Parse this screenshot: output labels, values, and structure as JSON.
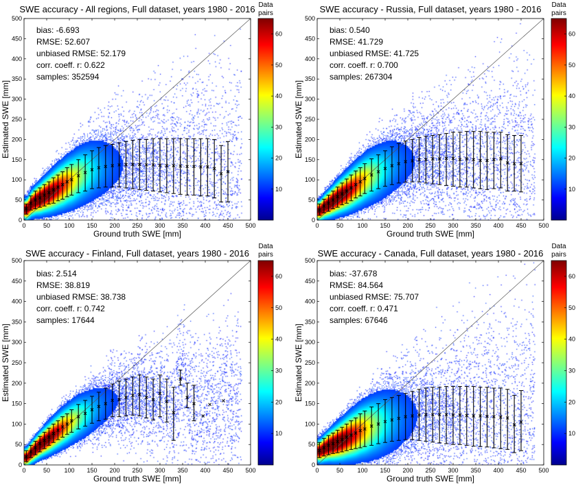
{
  "colorbar": {
    "title_line1": "Data",
    "title_line2": "pairs",
    "ticks": [
      10,
      20,
      30,
      40,
      50,
      60
    ],
    "range": [
      0,
      65
    ]
  },
  "panels": [
    {
      "title": "SWE accuracy - All regions, Full dataset, years 1980 - 2016",
      "stats": {
        "bias": "bias: -6.693",
        "rmse": "RMSE: 52.607",
        "urmse": "unbiased RMSE: 52.179",
        "corr": "corr. coeff. r: 0.622",
        "samples": "samples: 352594"
      }
    },
    {
      "title": "SWE accuracy - Russia, Full dataset, years 1980 - 2016",
      "stats": {
        "bias": "bias: 0.540",
        "rmse": "RMSE: 41.729",
        "urmse": "unbiased RMSE: 41.725",
        "corr": "corr. coeff. r: 0.700",
        "samples": "samples: 267304"
      }
    },
    {
      "title": "SWE accuracy - Finland, Full dataset, years 1980 - 2016",
      "stats": {
        "bias": "bias: 2.514",
        "rmse": "RMSE: 38.819",
        "urmse": "unbiased RMSE: 38.738",
        "corr": "corr. coeff. r: 0.742",
        "samples": "samples: 17644"
      }
    },
    {
      "title": "SWE accuracy - Canada, Full dataset, years 1980 - 2016",
      "stats": {
        "bias": "bias: -37.678",
        "rmse": "RMSE: 84.564",
        "urmse": "unbiased RMSE: 75.707",
        "corr": "corr. coeff. r: 0.471",
        "samples": "samples: 67646"
      }
    }
  ],
  "chart_data": [
    {
      "type": "scatter",
      "title": "SWE accuracy - All regions, Full dataset, years 1980 - 2016",
      "xlabel": "Ground truth SWE [mm]",
      "ylabel": "Estimated SWE [mm]",
      "xlim": [
        0,
        500
      ],
      "ylim": [
        0,
        500
      ],
      "xticks": [
        0,
        50,
        100,
        150,
        200,
        250,
        300,
        350,
        400,
        450,
        500
      ],
      "yticks": [
        0,
        50,
        100,
        150,
        200,
        250,
        300,
        350,
        400,
        450,
        500
      ],
      "reference_line": "1:1",
      "density_spread": 0.75,
      "bins": [
        {
          "x": 5,
          "mean": 28,
          "low": 15,
          "high": 40
        },
        {
          "x": 15,
          "mean": 42,
          "low": 25,
          "high": 60
        },
        {
          "x": 25,
          "mean": 50,
          "low": 28,
          "high": 72
        },
        {
          "x": 35,
          "mean": 55,
          "low": 32,
          "high": 80
        },
        {
          "x": 45,
          "mean": 62,
          "low": 35,
          "high": 88
        },
        {
          "x": 55,
          "mean": 68,
          "low": 40,
          "high": 95
        },
        {
          "x": 65,
          "mean": 75,
          "low": 42,
          "high": 105
        },
        {
          "x": 75,
          "mean": 82,
          "low": 48,
          "high": 112
        },
        {
          "x": 85,
          "mean": 88,
          "low": 52,
          "high": 120
        },
        {
          "x": 95,
          "mean": 95,
          "low": 58,
          "high": 130
        },
        {
          "x": 105,
          "mean": 100,
          "low": 62,
          "high": 138
        },
        {
          "x": 120,
          "mean": 110,
          "low": 68,
          "high": 150
        },
        {
          "x": 135,
          "mean": 118,
          "low": 72,
          "high": 162
        },
        {
          "x": 150,
          "mean": 125,
          "low": 78,
          "high": 172
        },
        {
          "x": 165,
          "mean": 130,
          "low": 80,
          "high": 180
        },
        {
          "x": 180,
          "mean": 133,
          "low": 82,
          "high": 185
        },
        {
          "x": 195,
          "mean": 135,
          "low": 82,
          "high": 188
        },
        {
          "x": 210,
          "mean": 137,
          "low": 82,
          "high": 192
        },
        {
          "x": 225,
          "mean": 138,
          "low": 80,
          "high": 195
        },
        {
          "x": 240,
          "mean": 138,
          "low": 78,
          "high": 198
        },
        {
          "x": 255,
          "mean": 138,
          "low": 76,
          "high": 200
        },
        {
          "x": 270,
          "mean": 137,
          "low": 74,
          "high": 200
        },
        {
          "x": 285,
          "mean": 137,
          "low": 72,
          "high": 202
        },
        {
          "x": 300,
          "mean": 136,
          "low": 70,
          "high": 202
        },
        {
          "x": 315,
          "mean": 135,
          "low": 68,
          "high": 202
        },
        {
          "x": 330,
          "mean": 135,
          "low": 66,
          "high": 202
        },
        {
          "x": 345,
          "mean": 134,
          "low": 64,
          "high": 202
        },
        {
          "x": 360,
          "mean": 133,
          "low": 62,
          "high": 202
        },
        {
          "x": 375,
          "mean": 133,
          "low": 62,
          "high": 202
        },
        {
          "x": 390,
          "mean": 132,
          "low": 60,
          "high": 202
        },
        {
          "x": 405,
          "mean": 132,
          "low": 60,
          "high": 202
        },
        {
          "x": 420,
          "mean": 128,
          "low": 55,
          "high": 200
        },
        {
          "x": 435,
          "mean": 115,
          "low": 45,
          "high": 185
        },
        {
          "x": 450,
          "mean": 120,
          "low": 45,
          "high": 195
        }
      ]
    },
    {
      "type": "scatter",
      "title": "SWE accuracy - Russia, Full dataset, years 1980 - 2016",
      "xlabel": "Ground truth SWE [mm]",
      "ylabel": "Estimated SWE [mm]",
      "xlim": [
        0,
        500
      ],
      "ylim": [
        0,
        500
      ],
      "xticks": [
        0,
        50,
        100,
        150,
        200,
        250,
        300,
        350,
        400,
        450,
        500
      ],
      "yticks": [
        0,
        50,
        100,
        150,
        200,
        250,
        300,
        350,
        400,
        450,
        500
      ],
      "reference_line": "1:1",
      "density_spread": 0.7,
      "bins": [
        {
          "x": 5,
          "mean": 25,
          "low": 12,
          "high": 40
        },
        {
          "x": 15,
          "mean": 35,
          "low": 18,
          "high": 52
        },
        {
          "x": 25,
          "mean": 42,
          "low": 22,
          "high": 62
        },
        {
          "x": 35,
          "mean": 50,
          "low": 28,
          "high": 72
        },
        {
          "x": 45,
          "mean": 58,
          "low": 32,
          "high": 82
        },
        {
          "x": 55,
          "mean": 65,
          "low": 38,
          "high": 92
        },
        {
          "x": 65,
          "mean": 72,
          "low": 42,
          "high": 102
        },
        {
          "x": 75,
          "mean": 80,
          "low": 48,
          "high": 112
        },
        {
          "x": 85,
          "mean": 88,
          "low": 55,
          "high": 122
        },
        {
          "x": 95,
          "mean": 95,
          "low": 60,
          "high": 130
        },
        {
          "x": 105,
          "mean": 103,
          "low": 66,
          "high": 140
        },
        {
          "x": 120,
          "mean": 112,
          "low": 72,
          "high": 152
        },
        {
          "x": 135,
          "mean": 120,
          "low": 78,
          "high": 162
        },
        {
          "x": 150,
          "mean": 128,
          "low": 84,
          "high": 172
        },
        {
          "x": 165,
          "mean": 135,
          "low": 88,
          "high": 182
        },
        {
          "x": 180,
          "mean": 140,
          "low": 92,
          "high": 190
        },
        {
          "x": 195,
          "mean": 145,
          "low": 94,
          "high": 196
        },
        {
          "x": 210,
          "mean": 147,
          "low": 95,
          "high": 200
        },
        {
          "x": 225,
          "mean": 150,
          "low": 95,
          "high": 205
        },
        {
          "x": 240,
          "mean": 150,
          "low": 92,
          "high": 208
        },
        {
          "x": 255,
          "mean": 152,
          "low": 90,
          "high": 210
        },
        {
          "x": 270,
          "mean": 152,
          "low": 88,
          "high": 212
        },
        {
          "x": 285,
          "mean": 153,
          "low": 86,
          "high": 215
        },
        {
          "x": 300,
          "mean": 153,
          "low": 84,
          "high": 218
        },
        {
          "x": 315,
          "mean": 150,
          "low": 82,
          "high": 218
        },
        {
          "x": 330,
          "mean": 152,
          "low": 82,
          "high": 220
        },
        {
          "x": 345,
          "mean": 150,
          "low": 80,
          "high": 220
        },
        {
          "x": 360,
          "mean": 148,
          "low": 78,
          "high": 220
        },
        {
          "x": 375,
          "mean": 148,
          "low": 76,
          "high": 218
        },
        {
          "x": 390,
          "mean": 150,
          "low": 78,
          "high": 218
        },
        {
          "x": 405,
          "mean": 152,
          "low": 80,
          "high": 218
        },
        {
          "x": 420,
          "mean": 142,
          "low": 72,
          "high": 212
        },
        {
          "x": 435,
          "mean": 140,
          "low": 72,
          "high": 210
        },
        {
          "x": 450,
          "mean": 140,
          "low": 70,
          "high": 210
        }
      ]
    },
    {
      "type": "scatter",
      "title": "SWE accuracy - Finland, Full dataset, years 1980 - 2016",
      "xlabel": "Ground truth SWE [mm]",
      "ylabel": "Estimated SWE [mm]",
      "xlim": [
        0,
        500
      ],
      "ylim": [
        0,
        500
      ],
      "xticks": [
        0,
        50,
        100,
        150,
        200,
        250,
        300,
        350,
        400,
        450,
        500
      ],
      "yticks": [
        0,
        50,
        100,
        150,
        200,
        250,
        300,
        350,
        400,
        450,
        500
      ],
      "reference_line": "1:1",
      "density_spread": 0.55,
      "bins": [
        {
          "x": 5,
          "mean": 20,
          "low": 8,
          "high": 35
        },
        {
          "x": 15,
          "mean": 32,
          "low": 18,
          "high": 48
        },
        {
          "x": 25,
          "mean": 42,
          "low": 25,
          "high": 58
        },
        {
          "x": 35,
          "mean": 52,
          "low": 32,
          "high": 70
        },
        {
          "x": 45,
          "mean": 60,
          "low": 40,
          "high": 80
        },
        {
          "x": 55,
          "mean": 68,
          "low": 48,
          "high": 90
        },
        {
          "x": 65,
          "mean": 77,
          "low": 55,
          "high": 100
        },
        {
          "x": 75,
          "mean": 85,
          "low": 62,
          "high": 108
        },
        {
          "x": 85,
          "mean": 93,
          "low": 68,
          "high": 118
        },
        {
          "x": 95,
          "mean": 100,
          "low": 75,
          "high": 125
        },
        {
          "x": 105,
          "mean": 108,
          "low": 80,
          "high": 135
        },
        {
          "x": 120,
          "mean": 118,
          "low": 88,
          "high": 148
        },
        {
          "x": 135,
          "mean": 126,
          "low": 95,
          "high": 158
        },
        {
          "x": 150,
          "mean": 135,
          "low": 102,
          "high": 168
        },
        {
          "x": 165,
          "mean": 143,
          "low": 108,
          "high": 178
        },
        {
          "x": 180,
          "mean": 150,
          "low": 112,
          "high": 188
        },
        {
          "x": 195,
          "mean": 158,
          "low": 118,
          "high": 198
        },
        {
          "x": 210,
          "mean": 160,
          "low": 118,
          "high": 205
        },
        {
          "x": 225,
          "mean": 165,
          "low": 120,
          "high": 210
        },
        {
          "x": 240,
          "mean": 170,
          "low": 122,
          "high": 215
        },
        {
          "x": 255,
          "mean": 172,
          "low": 120,
          "high": 220
        },
        {
          "x": 270,
          "mean": 165,
          "low": 115,
          "high": 215
        },
        {
          "x": 285,
          "mean": 160,
          "low": 110,
          "high": 210
        },
        {
          "x": 300,
          "mean": 175,
          "low": 118,
          "high": 220
        },
        {
          "x": 315,
          "mean": 155,
          "low": 105,
          "high": 210
        },
        {
          "x": 330,
          "mean": 128,
          "low": 60,
          "high": 190
        },
        {
          "x": 345,
          "mean": 210,
          "low": 195,
          "high": 232
        },
        {
          "x": 360,
          "mean": 165,
          "low": 140,
          "high": 200
        },
        {
          "x": 375,
          "mean": 150,
          "low": 108,
          "high": 195
        },
        {
          "x": 395,
          "mean": 120
        },
        {
          "x": 410,
          "mean": 148
        },
        {
          "x": 440,
          "mean": 157
        }
      ]
    },
    {
      "type": "scatter",
      "title": "SWE accuracy - Canada, Full dataset, years 1980 - 2016",
      "xlabel": "Ground truth SWE [mm]",
      "ylabel": "Estimated SWE [mm]",
      "xlim": [
        0,
        500
      ],
      "ylim": [
        0,
        500
      ],
      "xticks": [
        0,
        50,
        100,
        150,
        200,
        250,
        300,
        350,
        400,
        450,
        500
      ],
      "yticks": [
        0,
        50,
        100,
        150,
        200,
        250,
        300,
        350,
        400,
        450,
        500
      ],
      "reference_line": "1:1",
      "density_spread": 0.8,
      "bins": [
        {
          "x": 5,
          "mean": 35,
          "low": 18,
          "high": 55
        },
        {
          "x": 15,
          "mean": 42,
          "low": 22,
          "high": 65
        },
        {
          "x": 25,
          "mean": 48,
          "low": 25,
          "high": 72
        },
        {
          "x": 35,
          "mean": 52,
          "low": 28,
          "high": 78
        },
        {
          "x": 45,
          "mean": 57,
          "low": 30,
          "high": 85
        },
        {
          "x": 55,
          "mean": 62,
          "low": 32,
          "high": 92
        },
        {
          "x": 65,
          "mean": 68,
          "low": 35,
          "high": 100
        },
        {
          "x": 75,
          "mean": 73,
          "low": 38,
          "high": 108
        },
        {
          "x": 85,
          "mean": 78,
          "low": 40,
          "high": 115
        },
        {
          "x": 95,
          "mean": 84,
          "low": 42,
          "high": 125
        },
        {
          "x": 105,
          "mean": 88,
          "low": 45,
          "high": 132
        },
        {
          "x": 120,
          "mean": 95,
          "low": 48,
          "high": 142
        },
        {
          "x": 135,
          "mean": 100,
          "low": 52,
          "high": 150
        },
        {
          "x": 150,
          "mean": 106,
          "low": 55,
          "high": 160
        },
        {
          "x": 165,
          "mean": 110,
          "low": 58,
          "high": 165
        },
        {
          "x": 180,
          "mean": 114,
          "low": 60,
          "high": 170
        },
        {
          "x": 195,
          "mean": 118,
          "low": 62,
          "high": 175
        },
        {
          "x": 210,
          "mean": 120,
          "low": 62,
          "high": 180
        },
        {
          "x": 225,
          "mean": 122,
          "low": 60,
          "high": 185
        },
        {
          "x": 240,
          "mean": 123,
          "low": 58,
          "high": 188
        },
        {
          "x": 255,
          "mean": 123,
          "low": 56,
          "high": 190
        },
        {
          "x": 270,
          "mean": 123,
          "low": 54,
          "high": 190
        },
        {
          "x": 285,
          "mean": 123,
          "low": 52,
          "high": 192
        },
        {
          "x": 300,
          "mean": 122,
          "low": 50,
          "high": 192
        },
        {
          "x": 315,
          "mean": 122,
          "low": 50,
          "high": 192
        },
        {
          "x": 330,
          "mean": 121,
          "low": 48,
          "high": 192
        },
        {
          "x": 345,
          "mean": 120,
          "low": 46,
          "high": 192
        },
        {
          "x": 360,
          "mean": 120,
          "low": 45,
          "high": 190
        },
        {
          "x": 375,
          "mean": 119,
          "low": 44,
          "high": 190
        },
        {
          "x": 390,
          "mean": 118,
          "low": 42,
          "high": 188
        },
        {
          "x": 405,
          "mean": 117,
          "low": 40,
          "high": 188
        },
        {
          "x": 420,
          "mean": 115,
          "low": 38,
          "high": 185
        },
        {
          "x": 435,
          "mean": 98,
          "low": 30,
          "high": 170
        },
        {
          "x": 450,
          "mean": 105,
          "low": 35,
          "high": 182
        }
      ]
    }
  ]
}
